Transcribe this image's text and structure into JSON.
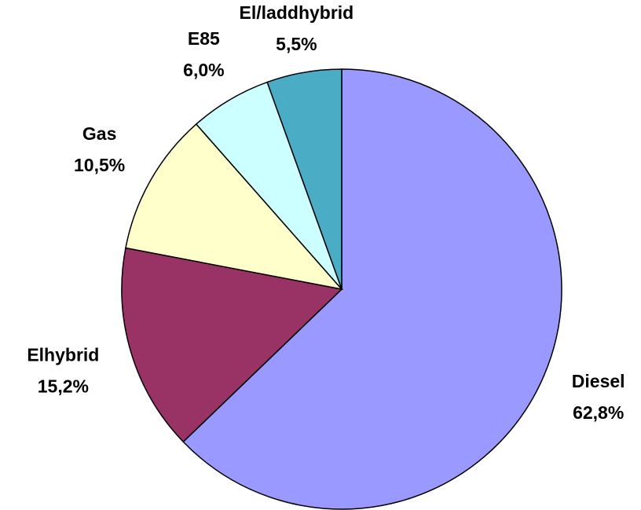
{
  "chart_data": {
    "type": "pie",
    "categories": [
      "Diesel",
      "Elhybrid",
      "Gas",
      "E85",
      "El/laddhybrid"
    ],
    "values": [
      62.8,
      15.2,
      10.5,
      6.0,
      5.5
    ],
    "value_labels": [
      "62,8%",
      "15,2%",
      "10,5%",
      "6,0%",
      "5,5%"
    ],
    "colors": [
      "#9999ff",
      "#993366",
      "#ffffcc",
      "#ccffff",
      "#4bacc6"
    ]
  }
}
